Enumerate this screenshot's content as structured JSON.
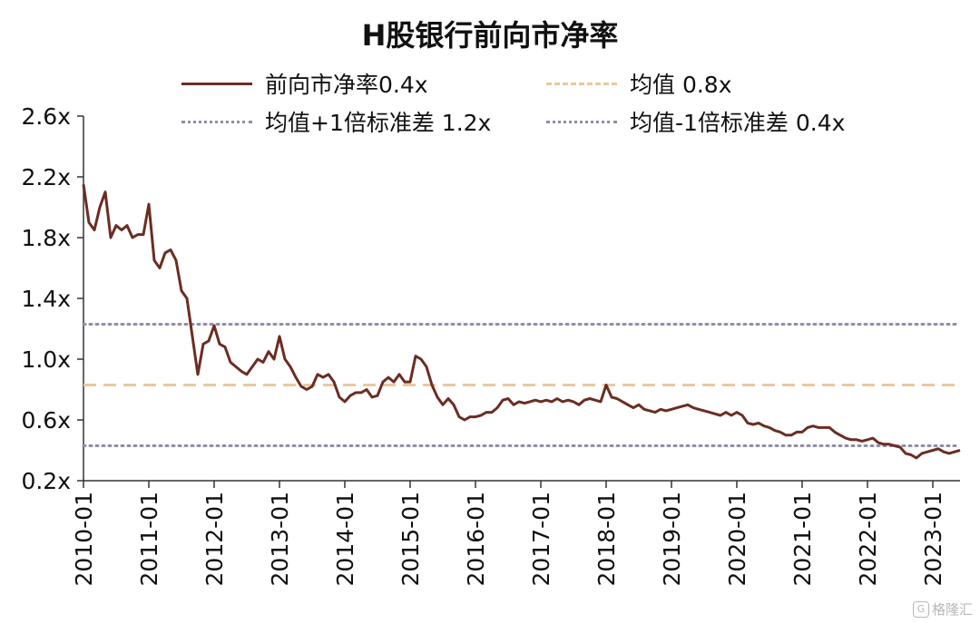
{
  "chart_data": {
    "type": "line",
    "title": "H股银行前向市净率",
    "xlabel": "",
    "ylabel": "",
    "ylim": [
      0.2,
      2.6
    ],
    "y_ticks": [
      0.2,
      0.6,
      1.0,
      1.4,
      1.8,
      2.2,
      2.6
    ],
    "y_tick_labels": [
      "0.2x",
      "0.6x",
      "1.0x",
      "1.4x",
      "1.8x",
      "2.2x",
      "2.6x"
    ],
    "x_range": [
      "2010-01",
      "2023-06"
    ],
    "x_ticks": [
      "2010-01",
      "2011-01",
      "2012-01",
      "2013-01",
      "2014-01",
      "2015-01",
      "2016-01",
      "2017-01",
      "2018-01",
      "2019-01",
      "2020-01",
      "2021-01",
      "2022-01",
      "2023-01"
    ],
    "grid": false,
    "legend_placement": "top",
    "series": [
      {
        "name": "前向市净率0.4x",
        "color": "#6b2d22",
        "style": "solid",
        "x": [
          "2010-01",
          "2010-02",
          "2010-03",
          "2010-04",
          "2010-05",
          "2010-06",
          "2010-07",
          "2010-08",
          "2010-09",
          "2010-10",
          "2010-11",
          "2010-12",
          "2011-01",
          "2011-02",
          "2011-03",
          "2011-04",
          "2011-05",
          "2011-06",
          "2011-07",
          "2011-08",
          "2011-09",
          "2011-10",
          "2011-11",
          "2011-12",
          "2012-01",
          "2012-02",
          "2012-03",
          "2012-04",
          "2012-05",
          "2012-06",
          "2012-07",
          "2012-08",
          "2012-09",
          "2012-10",
          "2012-11",
          "2012-12",
          "2013-01",
          "2013-02",
          "2013-03",
          "2013-04",
          "2013-05",
          "2013-06",
          "2013-07",
          "2013-08",
          "2013-09",
          "2013-10",
          "2013-11",
          "2013-12",
          "2014-01",
          "2014-02",
          "2014-03",
          "2014-04",
          "2014-05",
          "2014-06",
          "2014-07",
          "2014-08",
          "2014-09",
          "2014-10",
          "2014-11",
          "2014-12",
          "2015-01",
          "2015-02",
          "2015-03",
          "2015-04",
          "2015-05",
          "2015-06",
          "2015-07",
          "2015-08",
          "2015-09",
          "2015-10",
          "2015-11",
          "2015-12",
          "2016-01",
          "2016-02",
          "2016-03",
          "2016-04",
          "2016-05",
          "2016-06",
          "2016-07",
          "2016-08",
          "2016-09",
          "2016-10",
          "2016-11",
          "2016-12",
          "2017-01",
          "2017-02",
          "2017-03",
          "2017-04",
          "2017-05",
          "2017-06",
          "2017-07",
          "2017-08",
          "2017-09",
          "2017-10",
          "2017-11",
          "2017-12",
          "2018-01",
          "2018-02",
          "2018-03",
          "2018-04",
          "2018-05",
          "2018-06",
          "2018-07",
          "2018-08",
          "2018-09",
          "2018-10",
          "2018-11",
          "2018-12",
          "2019-01",
          "2019-02",
          "2019-03",
          "2019-04",
          "2019-05",
          "2019-06",
          "2019-07",
          "2019-08",
          "2019-09",
          "2019-10",
          "2019-11",
          "2019-12",
          "2020-01",
          "2020-02",
          "2020-03",
          "2020-04",
          "2020-05",
          "2020-06",
          "2020-07",
          "2020-08",
          "2020-09",
          "2020-10",
          "2020-11",
          "2020-12",
          "2021-01",
          "2021-02",
          "2021-03",
          "2021-04",
          "2021-05",
          "2021-06",
          "2021-07",
          "2021-08",
          "2021-09",
          "2021-10",
          "2021-11",
          "2021-12",
          "2022-01",
          "2022-02",
          "2022-03",
          "2022-04",
          "2022-05",
          "2022-06",
          "2022-07",
          "2022-08",
          "2022-09",
          "2022-10",
          "2022-11",
          "2022-12",
          "2023-01",
          "2023-02",
          "2023-03",
          "2023-04",
          "2023-05",
          "2023-06"
        ],
        "values": [
          2.15,
          1.9,
          1.85,
          2.0,
          2.1,
          1.8,
          1.88,
          1.85,
          1.88,
          1.8,
          1.82,
          1.82,
          2.02,
          1.65,
          1.6,
          1.7,
          1.72,
          1.65,
          1.45,
          1.4,
          1.15,
          0.9,
          1.1,
          1.12,
          1.22,
          1.1,
          1.08,
          0.98,
          0.95,
          0.92,
          0.9,
          0.95,
          1.0,
          0.98,
          1.05,
          1.0,
          1.15,
          1.0,
          0.95,
          0.88,
          0.82,
          0.8,
          0.82,
          0.9,
          0.88,
          0.9,
          0.85,
          0.75,
          0.72,
          0.76,
          0.78,
          0.78,
          0.8,
          0.75,
          0.76,
          0.85,
          0.88,
          0.85,
          0.9,
          0.85,
          0.85,
          1.02,
          1.0,
          0.95,
          0.83,
          0.75,
          0.7,
          0.74,
          0.7,
          0.62,
          0.6,
          0.62,
          0.62,
          0.63,
          0.65,
          0.65,
          0.68,
          0.73,
          0.74,
          0.7,
          0.72,
          0.71,
          0.72,
          0.73,
          0.72,
          0.73,
          0.72,
          0.74,
          0.72,
          0.73,
          0.72,
          0.7,
          0.73,
          0.74,
          0.73,
          0.72,
          0.83,
          0.75,
          0.74,
          0.72,
          0.7,
          0.68,
          0.7,
          0.67,
          0.66,
          0.65,
          0.67,
          0.66,
          0.67,
          0.68,
          0.69,
          0.7,
          0.68,
          0.67,
          0.66,
          0.65,
          0.64,
          0.63,
          0.65,
          0.63,
          0.65,
          0.63,
          0.58,
          0.57,
          0.58,
          0.56,
          0.55,
          0.53,
          0.52,
          0.5,
          0.5,
          0.52,
          0.52,
          0.55,
          0.56,
          0.55,
          0.55,
          0.55,
          0.52,
          0.5,
          0.48,
          0.47,
          0.47,
          0.46,
          0.47,
          0.48,
          0.45,
          0.44,
          0.44,
          0.43,
          0.42,
          0.38,
          0.37,
          0.35,
          0.38,
          0.39,
          0.4,
          0.41,
          0.39,
          0.38,
          0.39,
          0.4
        ]
      },
      {
        "name": "均值 0.8x",
        "color": "#e9c8a0",
        "style": "dashed",
        "value": 0.83
      },
      {
        "name": "均值+1倍标准差 1.2x",
        "color": "#8e8ea6",
        "style": "dotted",
        "value": 1.23
      },
      {
        "name": "均值-1倍标准差 0.4x",
        "color": "#8e8ea6",
        "style": "dotted",
        "value": 0.43
      }
    ]
  },
  "watermark": "格隆汇"
}
